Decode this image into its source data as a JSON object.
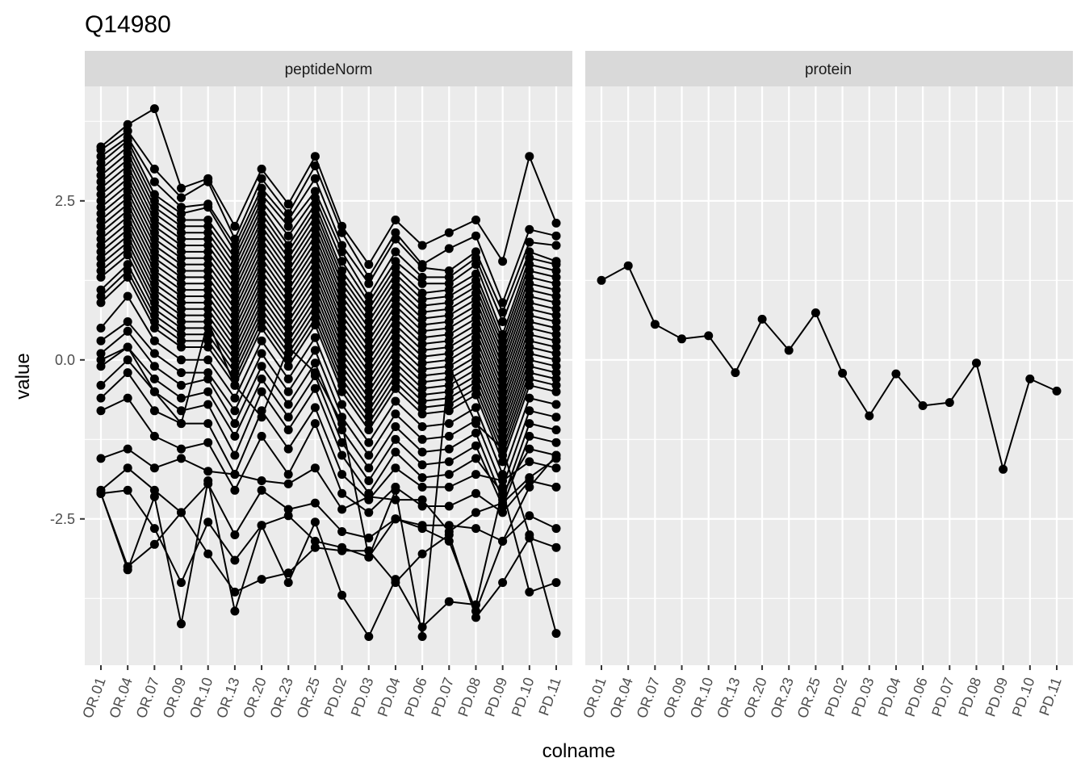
{
  "chart_data": {
    "type": "line",
    "title": "Q14980",
    "xlabel": "colname",
    "ylabel": "value",
    "ylim": [
      -4.8,
      4.3
    ],
    "yticks": [
      -2.5,
      0.0,
      2.5
    ],
    "ytick_labels": [
      "-2.5",
      "0.0",
      "2.5"
    ],
    "categories": [
      "OR.01",
      "OR.04",
      "OR.07",
      "OR.09",
      "OR.10",
      "OR.13",
      "OR.20",
      "OR.23",
      "OR.25",
      "PD.02",
      "PD.03",
      "PD.04",
      "PD.06",
      "PD.07",
      "PD.08",
      "PD.09",
      "PD.10",
      "PD.11"
    ],
    "grid": true,
    "legend": "none",
    "colors": {
      "panel_bg": "#ebebeb",
      "strip_bg": "#d9d9d9",
      "grid": "#ffffff",
      "line": "#000000"
    },
    "facets": [
      {
        "label": "peptideNorm",
        "series": [
          {
            "values": [
              3.35,
              3.7,
              3.95,
              2.7,
              2.85,
              2.1,
              3.0,
              2.45,
              3.2,
              2.1,
              1.5,
              2.2,
              1.8,
              2.0,
              2.2,
              1.55,
              3.2,
              2.15
            ]
          },
          {
            "values": [
              3.3,
              3.6,
              3.0,
              2.55,
              2.8,
              1.9,
              2.85,
              2.3,
              3.05,
              2.0,
              1.3,
              2.0,
              1.5,
              1.75,
              1.95,
              0.9,
              2.05,
              1.95
            ]
          },
          {
            "values": [
              3.2,
              3.5,
              2.8,
              2.4,
              2.45,
              1.8,
              2.7,
              2.2,
              2.85,
              1.8,
              1.2,
              1.9,
              1.45,
              1.4,
              1.7,
              0.75,
              1.85,
              1.8
            ]
          },
          {
            "values": [
              3.1,
              3.45,
              2.6,
              2.3,
              2.4,
              1.7,
              2.6,
              2.1,
              2.65,
              1.7,
              1.0,
              1.7,
              1.3,
              1.3,
              1.6,
              0.6,
              1.7,
              1.55
            ]
          },
          {
            "values": [
              3.0,
              3.35,
              2.5,
              2.2,
              2.2,
              1.6,
              2.5,
              1.95,
              2.55,
              1.55,
              0.9,
              1.55,
              1.2,
              1.2,
              1.5,
              0.4,
              1.6,
              1.5
            ]
          },
          {
            "values": [
              2.9,
              3.25,
              2.4,
              2.1,
              2.1,
              1.5,
              2.4,
              1.8,
              2.45,
              1.4,
              0.8,
              1.45,
              1.05,
              1.1,
              1.35,
              0.3,
              1.5,
              1.4
            ]
          },
          {
            "values": [
              2.8,
              3.15,
              2.3,
              2.0,
              2.0,
              1.4,
              2.3,
              1.7,
              2.35,
              1.3,
              0.7,
              1.35,
              0.95,
              1.0,
              1.25,
              0.2,
              1.4,
              1.3
            ]
          },
          {
            "values": [
              2.7,
              3.05,
              2.2,
              1.9,
              1.9,
              1.3,
              2.2,
              1.6,
              2.25,
              1.2,
              0.6,
              1.25,
              0.85,
              0.9,
              1.15,
              0.1,
              1.3,
              1.2
            ]
          },
          {
            "values": [
              2.6,
              2.95,
              2.1,
              1.8,
              1.8,
              1.2,
              2.1,
              1.5,
              2.15,
              1.1,
              0.5,
              1.15,
              0.75,
              0.8,
              1.05,
              0.0,
              1.2,
              1.1
            ]
          },
          {
            "values": [
              2.5,
              2.85,
              2.0,
              1.7,
              1.7,
              1.1,
              2.0,
              1.4,
              2.05,
              1.0,
              0.4,
              1.05,
              0.65,
              0.7,
              0.95,
              -0.1,
              1.1,
              1.0
            ]
          },
          {
            "values": [
              2.4,
              2.75,
              1.9,
              1.6,
              1.6,
              1.0,
              1.9,
              1.3,
              1.95,
              0.9,
              0.3,
              0.95,
              0.55,
              0.6,
              0.85,
              -0.2,
              1.0,
              0.9
            ]
          },
          {
            "values": [
              2.3,
              2.65,
              1.8,
              1.5,
              1.5,
              0.9,
              1.8,
              1.2,
              1.85,
              0.8,
              0.2,
              0.85,
              0.45,
              0.5,
              0.75,
              -0.3,
              0.9,
              0.8
            ]
          },
          {
            "values": [
              2.2,
              2.55,
              1.7,
              1.4,
              1.4,
              0.8,
              1.7,
              1.1,
              1.75,
              0.7,
              0.1,
              0.75,
              0.35,
              0.4,
              0.65,
              -0.4,
              0.8,
              0.7
            ]
          },
          {
            "values": [
              2.1,
              2.45,
              1.6,
              1.3,
              1.3,
              0.7,
              1.6,
              1.0,
              1.65,
              0.6,
              0.0,
              0.65,
              0.25,
              0.3,
              0.55,
              -0.5,
              0.7,
              0.6
            ]
          },
          {
            "values": [
              2.0,
              2.35,
              1.5,
              1.2,
              1.2,
              0.6,
              1.5,
              0.9,
              1.55,
              0.5,
              -0.1,
              0.55,
              0.15,
              0.2,
              0.45,
              -0.6,
              0.6,
              0.5
            ]
          },
          {
            "values": [
              1.9,
              2.25,
              1.4,
              1.1,
              1.1,
              0.5,
              1.4,
              0.8,
              1.45,
              0.4,
              -0.2,
              0.45,
              0.05,
              0.1,
              0.35,
              -0.7,
              0.5,
              0.4
            ]
          },
          {
            "values": [
              1.8,
              2.15,
              1.3,
              1.0,
              1.0,
              0.4,
              1.3,
              0.7,
              1.35,
              0.3,
              -0.3,
              0.35,
              -0.05,
              0.0,
              0.25,
              -0.8,
              0.4,
              0.3
            ]
          },
          {
            "values": [
              1.7,
              2.05,
              1.2,
              0.9,
              0.9,
              0.3,
              1.2,
              0.6,
              1.25,
              0.2,
              -0.4,
              0.25,
              -0.15,
              -0.1,
              0.15,
              -0.9,
              0.3,
              0.2
            ]
          },
          {
            "values": [
              1.6,
              1.95,
              1.1,
              0.8,
              0.8,
              0.2,
              1.1,
              0.5,
              1.15,
              0.1,
              -0.5,
              0.15,
              -0.25,
              -0.2,
              0.05,
              -1.0,
              0.2,
              0.1
            ]
          },
          {
            "values": [
              1.5,
              1.85,
              1.0,
              0.7,
              0.7,
              0.1,
              1.0,
              0.4,
              1.05,
              0.0,
              -0.6,
              0.05,
              -0.35,
              -0.3,
              -0.05,
              -1.1,
              0.1,
              0.0
            ]
          },
          {
            "values": [
              1.4,
              1.75,
              0.9,
              0.6,
              0.6,
              0.0,
              0.9,
              0.3,
              0.95,
              -0.1,
              -0.7,
              -0.05,
              -0.45,
              -0.4,
              -0.15,
              -1.2,
              0.0,
              -0.1
            ]
          },
          {
            "values": [
              1.3,
              1.65,
              0.8,
              0.5,
              0.5,
              -0.1,
              0.8,
              0.2,
              0.85,
              -0.2,
              -0.8,
              -0.15,
              -0.55,
              -0.5,
              -0.25,
              -1.3,
              -0.1,
              -0.2
            ]
          },
          {
            "values": [
              1.1,
              1.5,
              0.7,
              0.4,
              0.4,
              -0.2,
              0.7,
              0.1,
              0.75,
              -0.3,
              -0.9,
              -0.25,
              -0.65,
              -0.6,
              -0.35,
              -1.4,
              -0.2,
              -0.3
            ]
          },
          {
            "values": [
              1.0,
              1.4,
              0.6,
              0.3,
              0.3,
              -0.3,
              0.6,
              0.0,
              0.65,
              -0.4,
              -1.0,
              -0.35,
              -0.75,
              -0.7,
              -0.45,
              -1.5,
              -0.3,
              -0.4
            ]
          },
          {
            "values": [
              0.9,
              1.3,
              0.5,
              0.2,
              0.2,
              -0.4,
              0.5,
              -0.1,
              0.55,
              -0.5,
              -1.1,
              -0.45,
              -0.85,
              -0.8,
              -0.55,
              -1.6,
              -0.4,
              -0.5
            ]
          },
          {
            "values": [
              0.5,
              1.0,
              0.3,
              0.0,
              0.0,
              -0.6,
              0.3,
              -0.3,
              0.35,
              -0.7,
              -1.3,
              -0.65,
              -1.05,
              -1.0,
              -0.75,
              -1.8,
              -0.6,
              -0.7
            ]
          },
          {
            "values": [
              0.3,
              0.6,
              0.1,
              -0.2,
              -0.2,
              -0.8,
              0.1,
              -0.5,
              0.15,
              -0.9,
              -1.5,
              -0.85,
              -1.25,
              -1.2,
              -0.95,
              -2.0,
              -0.8,
              -0.9
            ]
          },
          {
            "values": [
              0.1,
              0.45,
              -0.1,
              -0.4,
              -0.3,
              -1.0,
              -0.1,
              -0.7,
              -0.05,
              -1.1,
              -1.7,
              -1.05,
              -1.45,
              -1.4,
              -1.15,
              -2.2,
              -1.0,
              -1.1
            ]
          },
          {
            "values": [
              -0.1,
              0.2,
              -0.3,
              -0.6,
              -0.5,
              -1.2,
              -0.3,
              -0.9,
              -0.25,
              -1.3,
              -1.9,
              -1.25,
              -1.65,
              -1.6,
              -1.35,
              -2.3,
              -1.2,
              -1.3
            ]
          },
          {
            "values": [
              -0.4,
              0.0,
              -0.5,
              -0.8,
              -0.7,
              -1.5,
              -0.5,
              -1.1,
              -0.45,
              -1.5,
              -2.1,
              -1.45,
              -1.85,
              -1.8,
              -1.55,
              -2.1,
              -1.4,
              -1.5
            ]
          },
          {
            "values": [
              -0.6,
              -0.2,
              -0.8,
              -1.0,
              -1.0,
              -1.8,
              -0.8,
              -1.4,
              -0.75,
              -1.8,
              -2.2,
              -1.7,
              -2.0,
              -2.0,
              -1.8,
              -1.9,
              -1.6,
              -1.7
            ]
          },
          {
            "values": [
              -0.8,
              -0.6,
              -1.2,
              -1.4,
              -1.3,
              -2.05,
              -1.2,
              -1.8,
              -1.0,
              -2.1,
              -2.4,
              -2.0,
              -2.3,
              -2.3,
              -2.1,
              -2.4,
              -1.9,
              -2.0
            ]
          },
          {
            "values": [
              -1.55,
              -1.4,
              -1.7,
              -1.55,
              -1.75,
              -1.8,
              -1.9,
              -1.95,
              -1.7,
              -2.35,
              -2.15,
              -2.2,
              -2.2,
              -2.7,
              -2.4,
              -2.25,
              -1.85,
              -1.55
            ]
          },
          {
            "values": [
              -2.05,
              -1.7,
              -2.05,
              -2.4,
              -1.95,
              -2.75,
              -2.05,
              -2.35,
              -2.25,
              -2.7,
              -2.8,
              -2.5,
              -2.6,
              -2.6,
              -2.65,
              -2.85,
              -2.0,
              -1.5
            ]
          },
          {
            "values": [
              -2.1,
              -2.05,
              -2.65,
              -3.5,
              -2.55,
              -3.15,
              -2.6,
              -2.45,
              -2.85,
              -2.95,
              -3.1,
              -2.5,
              -2.65,
              -2.85,
              -3.95,
              -2.85,
              -2.45,
              -2.65
            ]
          },
          {
            "values": [
              -2.1,
              -3.25,
              -2.9,
              -2.4,
              -3.05,
              -3.65,
              -3.45,
              -3.35,
              -2.95,
              -3.0,
              -3.0,
              -3.5,
              -3.05,
              -2.75,
              -4.05,
              -3.5,
              -2.8,
              -2.95
            ]
          },
          {
            "values": [
              -2.1,
              -3.3,
              -2.15,
              -4.15,
              -1.9,
              -3.95,
              -2.6,
              -3.5,
              -2.55,
              -3.7,
              -4.35,
              -3.45,
              -4.2,
              -3.8,
              -3.85,
              -2.05,
              -3.65,
              -3.5
            ]
          },
          {
            "values": [
              0.0,
              0.2,
              -0.5,
              -1.0,
              0.6,
              -0.4,
              -0.9,
              0.2,
              -0.2,
              -1.0,
              -3.1,
              -2.05,
              -4.35,
              -0.1,
              -1.0,
              -1.4,
              -2.75,
              -4.3
            ]
          }
        ]
      },
      {
        "label": "protein",
        "series": [
          {
            "values": [
              1.25,
              1.48,
              0.56,
              0.33,
              0.38,
              -0.2,
              0.64,
              0.15,
              0.74,
              -0.21,
              -0.88,
              -0.22,
              -0.72,
              -0.67,
              -0.05,
              -1.72,
              -0.3,
              -0.49
            ]
          }
        ]
      }
    ]
  }
}
